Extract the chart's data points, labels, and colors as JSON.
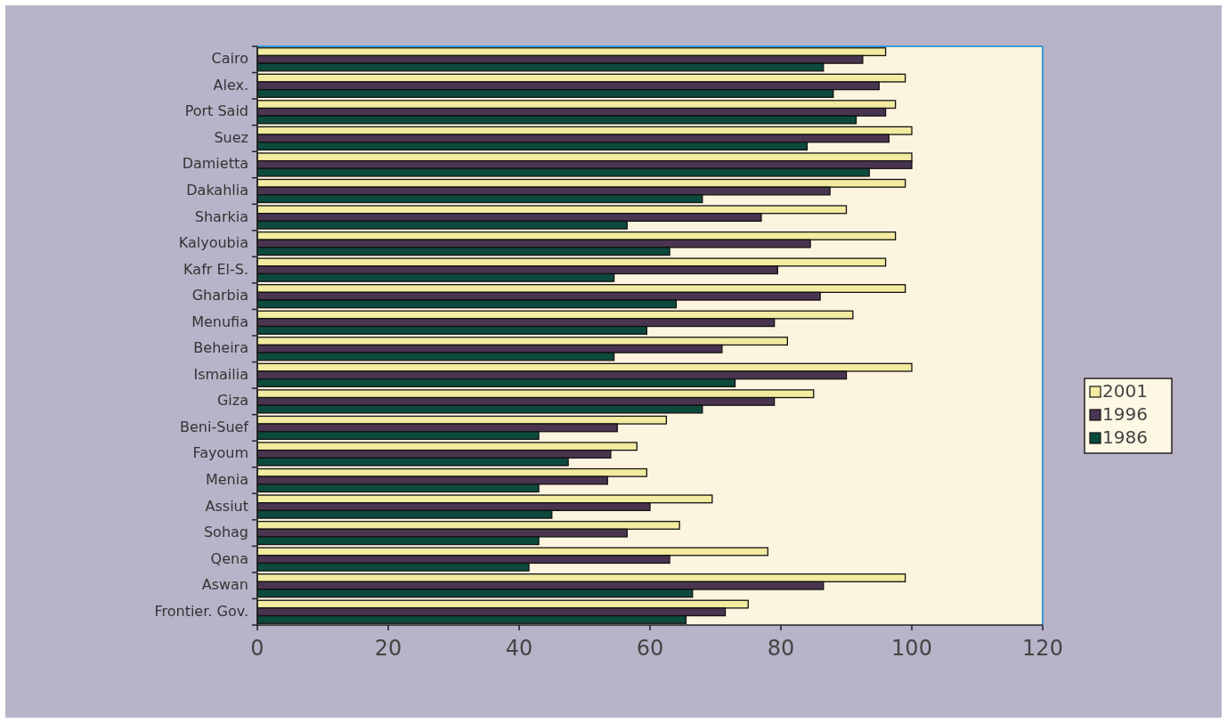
{
  "chart_data": {
    "type": "bar",
    "orientation": "horizontal",
    "categories": [
      "Cairo",
      "Alex.",
      "Port Said",
      "Suez",
      "Damietta",
      "Dakahlia",
      "Sharkia",
      "Kalyoubia",
      "Kafr El-S.",
      "Gharbia",
      "Menufia",
      "Beheira",
      "Ismailia",
      "Giza",
      "Beni-Suef",
      "Fayoum",
      "Menia",
      "Assiut",
      "Sohag",
      "Qena",
      "Aswan",
      "Frontier. Gov."
    ],
    "series": [
      {
        "name": "2001",
        "color": "#f2eba0",
        "values": [
          96,
          99,
          97.5,
          100,
          100,
          99,
          90,
          97.5,
          96,
          99,
          91,
          81,
          100,
          85,
          62.5,
          58,
          59.5,
          69.5,
          64.5,
          78,
          99,
          75
        ]
      },
      {
        "name": "1996",
        "color": "#4a3550",
        "values": [
          92.5,
          95,
          96,
          96.5,
          100,
          87.5,
          77,
          84.5,
          79.5,
          86,
          79,
          71,
          90,
          79,
          55,
          54,
          53.5,
          60,
          56.5,
          63,
          86.5,
          71.5
        ]
      },
      {
        "name": "1986",
        "color": "#0d4a3e",
        "values": [
          86.5,
          88,
          91.5,
          84,
          93.5,
          68,
          56.5,
          63,
          54.5,
          64,
          59.5,
          54.5,
          73,
          68,
          43,
          47.5,
          43,
          45,
          43,
          41.5,
          66.5,
          65.5
        ]
      }
    ],
    "xlim": [
      0,
      120
    ],
    "xticks": [
      0,
      20,
      40,
      60,
      80,
      100,
      120
    ],
    "grid": false,
    "legend": "right"
  }
}
